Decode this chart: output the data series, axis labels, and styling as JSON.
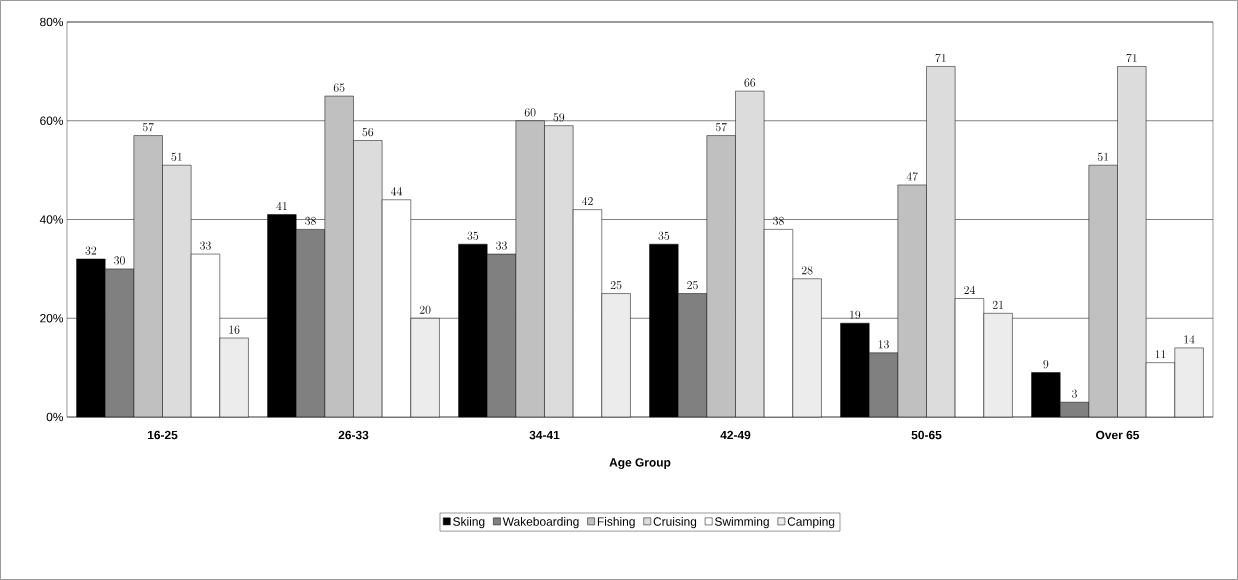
{
  "chart_data": {
    "type": "bar",
    "xlabel": "Age Group",
    "categories": [
      "16-25",
      "26-33",
      "34-41",
      "42-49",
      "50-65",
      "Over 65"
    ],
    "series": [
      {
        "name": "Skiing",
        "color": "#000000",
        "values": [
          32,
          41,
          35,
          35,
          19,
          9
        ]
      },
      {
        "name": "Wakeboarding",
        "color": "#808080",
        "values": [
          30,
          38,
          33,
          25,
          13,
          3
        ]
      },
      {
        "name": "Fishing",
        "color": "#c0c0c0",
        "values": [
          57,
          65,
          60,
          57,
          47,
          51
        ]
      },
      {
        "name": "Cruising",
        "color": "#dcdcdc",
        "values": [
          51,
          56,
          59,
          66,
          71,
          71
        ]
      },
      {
        "name": "Swimming",
        "color": "#ffffff",
        "values": [
          33,
          44,
          42,
          38,
          24,
          11
        ]
      },
      {
        "name": "Camping",
        "color": "#ececec",
        "values": [
          16,
          20,
          25,
          28,
          21,
          14
        ]
      }
    ],
    "ylim": [
      0,
      80
    ],
    "yticks": [
      {
        "value": 0,
        "label": "0%"
      },
      {
        "value": 20,
        "label": "20%"
      },
      {
        "value": 40,
        "label": "40%"
      },
      {
        "value": 60,
        "label": "60%"
      },
      {
        "value": 80,
        "label": "80%"
      }
    ],
    "grid": "y",
    "legend": "bottom",
    "data_labels": true
  }
}
